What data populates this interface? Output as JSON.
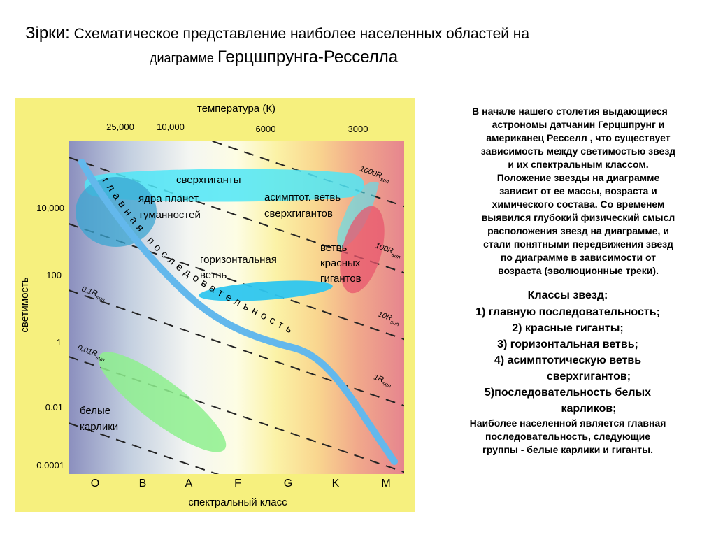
{
  "title": {
    "prefix": "Зірки:",
    "line1": "Схематическое представление наиболее населенных областей на",
    "line2_small": "диаграмме",
    "line2_big": "Герцшпрунга-Ресселла"
  },
  "figure": {
    "top_axis_title": "температура (К)",
    "temperature_ticks": [
      "25,000",
      "10,000",
      "6000",
      "3000"
    ],
    "y_axis_title": "светимость",
    "luminosity_ticks": [
      "10,000",
      "100",
      "1",
      "0.01",
      "0.0001"
    ],
    "spectral_classes": [
      "O",
      "B",
      "A",
      "F",
      "G",
      "K",
      "M"
    ],
    "bottom_axis_title": "спектральный класс",
    "radius_lines": [
      "1000R",
      "100R",
      "10R",
      "1R",
      "0.1R",
      "0.01R"
    ],
    "radius_subscript": "sun",
    "regions": {
      "supergiants": "сверхгиганты",
      "nuclei_line1": "ядра планет.",
      "nuclei_line2": "туманностей",
      "agb_line1": "асимптот. ветвь",
      "agb_line2": "сверхгигантов",
      "horizontal_line1": "горизонтальная",
      "horizontal_line2": "ветвь",
      "red_giants_line1": "ветвь",
      "red_giants_line2": "красных",
      "red_giants_line3": "гигантов",
      "white_dwarfs_line1": "белые",
      "white_dwarfs_line2": "карлики",
      "main_sequence": "главная последовательность"
    },
    "colors": {
      "main_sequence": "#63b8ec",
      "supergiants": "#4fe6f7",
      "horizontal_branch": "#2ec6ef",
      "red_giants": "#e8566d",
      "white_dwarfs": "#8ef08e",
      "nuclei": "#3aa6d2",
      "frame": "#f6f07e"
    }
  },
  "notes": {
    "paragraph_lines": [
      "В начале нашего столетия выдающиеся",
      "астрономы датчанин Герцшпрунг и",
      "американец Ресселл , что существует",
      "зависимость между светимостью звезд",
      "и их спектральным классом.",
      "Положение звезды на диаграмме",
      "зависит от ее массы, возраста и",
      "химического состава. Со временем",
      "выявился глубокий физический смысл",
      "расположения звезд на диаграмме, и",
      "стали понятными передвижения звезд",
      "по диаграмме в зависимости от",
      "возраста (эволюционные треки)."
    ],
    "classes_heading": "Классы звезд:",
    "classes": [
      "1) главную последовательность;",
      "2) красные гиганты;",
      "3) горизонтальная ветвь;",
      "4) асимптотическую ветвь",
      "сверхгигантов;",
      "5)последовательность белых",
      "карликов;"
    ],
    "footer_lines": [
      "Наиболее населенной является главная",
      "последовательность, следующие",
      "группы - белые карлики и гиганты."
    ]
  }
}
